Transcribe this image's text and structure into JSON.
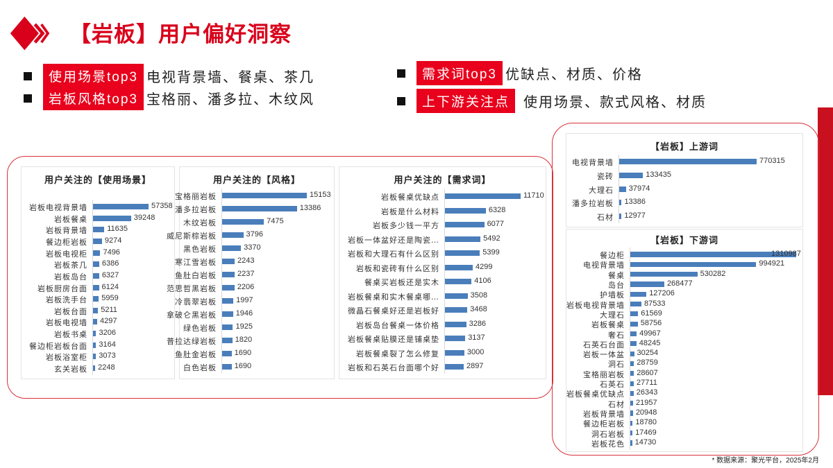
{
  "header": {
    "title": "【岩板】用户偏好洞察",
    "logo_icon": "red-diamond-chevron-icon"
  },
  "bullets": [
    {
      "tag": "使用场景top3",
      "text": "电视背景墙、餐桌、茶几"
    },
    {
      "tag": "岩板风格top3",
      "text": "宝格丽、潘多拉、木纹风"
    },
    {
      "tag": "需求词top3",
      "text": "优缺点、材质、价格"
    },
    {
      "tag": "上下游关注点",
      "text": "使用场景、款式风格、材质"
    }
  ],
  "colors": {
    "accent": "#e8001c",
    "bar": "#4a7ebb",
    "frame": "#d9303a"
  },
  "footer": "* 数据来源：聚光平台，2025年2月",
  "chart_data": [
    {
      "type": "bar",
      "orientation": "horizontal",
      "title": "用户关注的【使用场景】",
      "categories": [
        "岩板电视背景墙",
        "岩板餐桌",
        "岩板背景墙",
        "餐边柜岩板",
        "岩板电视柜",
        "岩板茶几",
        "岩板岛台",
        "岩板厨房台面",
        "岩板洗手台",
        "岩板台面",
        "岩板电视墙",
        "岩板书桌",
        "餐边柜岩板台面",
        "岩板浴室柜",
        "玄关岩板"
      ],
      "values": [
        57358,
        39248,
        11635,
        9274,
        7496,
        6386,
        6327,
        6124,
        5959,
        5211,
        4297,
        3206,
        3164,
        3073,
        2248
      ]
    },
    {
      "type": "bar",
      "orientation": "horizontal",
      "title": "用户关注的【风格】",
      "categories": [
        "宝格丽岩板",
        "潘多拉岩板",
        "木纹岩板",
        "威尼斯棕岩板",
        "黑色岩板",
        "寒江雪岩板",
        "鱼肚白岩板",
        "范思哲黑岩板",
        "冷翡翠岩板",
        "拿破仑黑岩板",
        "绿色岩板",
        "普拉达绿岩板",
        "鱼肚金岩板",
        "白色岩板"
      ],
      "values": [
        15153,
        13386,
        7475,
        3796,
        3370,
        2243,
        2237,
        2206,
        1997,
        1946,
        1925,
        1820,
        1690,
        1690
      ]
    },
    {
      "type": "bar",
      "orientation": "horizontal",
      "title": "用户关注的【需求词】",
      "categories": [
        "岩板餐桌优缺点",
        "岩板是什么材料",
        "岩板多少钱一平方",
        "岩板一体盆好还是陶瓷…",
        "岩板和大理石有什么区别",
        "岩板和瓷砖有什么区别",
        "餐桌买岩板还是实木",
        "岩板餐桌和实木餐桌哪…",
        "微晶石餐桌好还是岩板好",
        "岩板岛台餐桌一体价格",
        "岩板餐桌贴膜还是铺桌垫",
        "岩板餐桌裂了怎么修复",
        "岩板和石英石台面哪个好"
      ],
      "values": [
        11710,
        6328,
        6077,
        5492,
        5399,
        4299,
        4106,
        3508,
        3468,
        3286,
        3137,
        3000,
        2897
      ]
    },
    {
      "type": "bar",
      "orientation": "horizontal",
      "title": "【岩板】上游词",
      "categories": [
        "电视背景墙",
        "瓷砖",
        "大理石",
        "潘多拉岩板",
        "石材"
      ],
      "values": [
        770315,
        133435,
        37974,
        13386,
        12977
      ]
    },
    {
      "type": "bar",
      "orientation": "horizontal",
      "title": "【岩板】下游词",
      "categories": [
        "餐边柜",
        "电视背景墙",
        "餐桌",
        "岛台",
        "护墙板",
        "岩板电视背景墙",
        "大理石",
        "岩板餐桌",
        "奢石",
        "石英石台面",
        "岩板一体盆",
        "洞石",
        "宝格丽岩板",
        "石英石",
        "岩板餐桌优缺点",
        "石材",
        "岩板背景墙",
        "餐边柜岩板",
        "洞石岩板",
        "岩板花色"
      ],
      "values": [
        1310987,
        994921,
        530282,
        268477,
        127206,
        87533,
        61569,
        58756,
        49967,
        48245,
        30254,
        28759,
        28607,
        27711,
        26343,
        21957,
        20948,
        18780,
        17469,
        14730
      ]
    }
  ]
}
